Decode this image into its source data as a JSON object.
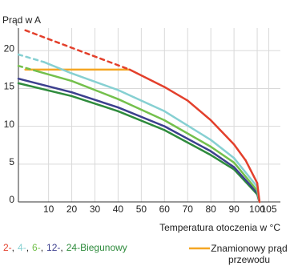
{
  "chart_data": {
    "type": "line",
    "y_label": "Prąd w A",
    "x_label": "Temperatura otoczenia w °C",
    "xlim": [
      -3,
      110
    ],
    "ylim": [
      0,
      23
    ],
    "xticks": [
      10,
      20,
      30,
      40,
      50,
      60,
      70,
      80,
      90,
      100,
      105
    ],
    "yticks": [
      0,
      5,
      10,
      15,
      20
    ],
    "grid": true,
    "legend_separator": ",",
    "legend_suffix": "Biegunowy",
    "series": [
      {
        "name": "2-",
        "color": "#e3402c",
        "dashed_to": 45,
        "x": [
          0,
          45,
          60,
          70,
          80,
          90,
          95,
          100,
          101
        ],
        "values": [
          22.7,
          17.5,
          15.2,
          13.4,
          10.8,
          7.6,
          5.5,
          2.5,
          0
        ]
      },
      {
        "name": "4-",
        "color": "#86d0d2",
        "dashed_to": 8,
        "x": [
          -3,
          8,
          20,
          40,
          60,
          80,
          90,
          100,
          101
        ],
        "values": [
          19.5,
          18.5,
          17,
          14.8,
          12,
          8.2,
          5.8,
          2,
          0
        ]
      },
      {
        "name": "6-",
        "color": "#74c04c",
        "dashed_to": 5,
        "x": [
          -3,
          5,
          20,
          40,
          60,
          80,
          90,
          100,
          101
        ],
        "values": [
          18,
          17.3,
          16,
          13.6,
          10.8,
          7.3,
          5.2,
          1.5,
          0
        ]
      },
      {
        "name": "12-",
        "color": "#3c3f8e",
        "dashed_to": -3,
        "x": [
          -3,
          20,
          40,
          60,
          80,
          90,
          100,
          101
        ],
        "values": [
          16.3,
          14.5,
          12.5,
          10,
          6.7,
          4.6,
          1.2,
          0
        ]
      },
      {
        "name": "24-",
        "color": "#2e8b3c",
        "dashed_to": -3,
        "x": [
          -3,
          20,
          40,
          60,
          80,
          90,
          100,
          101
        ],
        "values": [
          15.7,
          14,
          12,
          9.5,
          6.2,
          4.3,
          1,
          0
        ]
      },
      {
        "name": "Znamionowy prąd przewodu",
        "color": "#f5a623",
        "dashed_to": -3,
        "x": [
          0,
          45
        ],
        "values": [
          17.5,
          17.5
        ]
      }
    ]
  }
}
